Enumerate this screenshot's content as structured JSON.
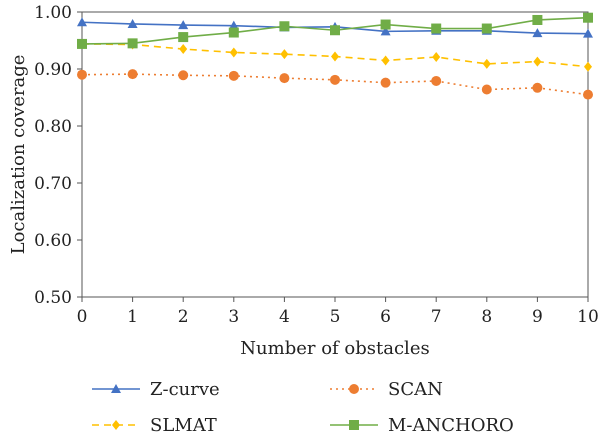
{
  "chart_data": {
    "type": "line",
    "title": "",
    "xlabel": "Number of obstacles",
    "ylabel": "Localization coverage",
    "x": [
      0,
      1,
      2,
      3,
      4,
      5,
      6,
      7,
      8,
      9,
      10
    ],
    "xlim": [
      0,
      10
    ],
    "ylim": [
      0.5,
      1.0
    ],
    "yticks": [
      "0.50",
      "0.60",
      "0.70",
      "0.80",
      "0.90",
      "1.00"
    ],
    "xticks": [
      "0",
      "1",
      "2",
      "3",
      "4",
      "5",
      "6",
      "7",
      "8",
      "9",
      "10"
    ],
    "grid": false,
    "legend_position": "bottom",
    "series": [
      {
        "name": "Z-curve",
        "color": "#4472c4",
        "marker": "triangle",
        "dash": "solid",
        "values": [
          0.982,
          0.979,
          0.977,
          0.976,
          0.973,
          0.974,
          0.966,
          0.967,
          0.967,
          0.963,
          0.962
        ]
      },
      {
        "name": "SCAN",
        "color": "#ed7d31",
        "marker": "circle",
        "dash": "dotted",
        "values": [
          0.89,
          0.891,
          0.889,
          0.888,
          0.884,
          0.881,
          0.876,
          0.879,
          0.864,
          0.867,
          0.855
        ]
      },
      {
        "name": "SLMAT",
        "color": "#ffc000",
        "marker": "diamond",
        "dash": "dashed",
        "values": [
          0.944,
          0.943,
          0.935,
          0.929,
          0.926,
          0.922,
          0.915,
          0.921,
          0.909,
          0.913,
          0.904
        ]
      },
      {
        "name": "M-ANCHORO",
        "color": "#70ad47",
        "marker": "square",
        "dash": "solid",
        "values": [
          0.944,
          0.945,
          0.956,
          0.964,
          0.975,
          0.968,
          0.978,
          0.971,
          0.971,
          0.986,
          0.99
        ]
      }
    ]
  }
}
